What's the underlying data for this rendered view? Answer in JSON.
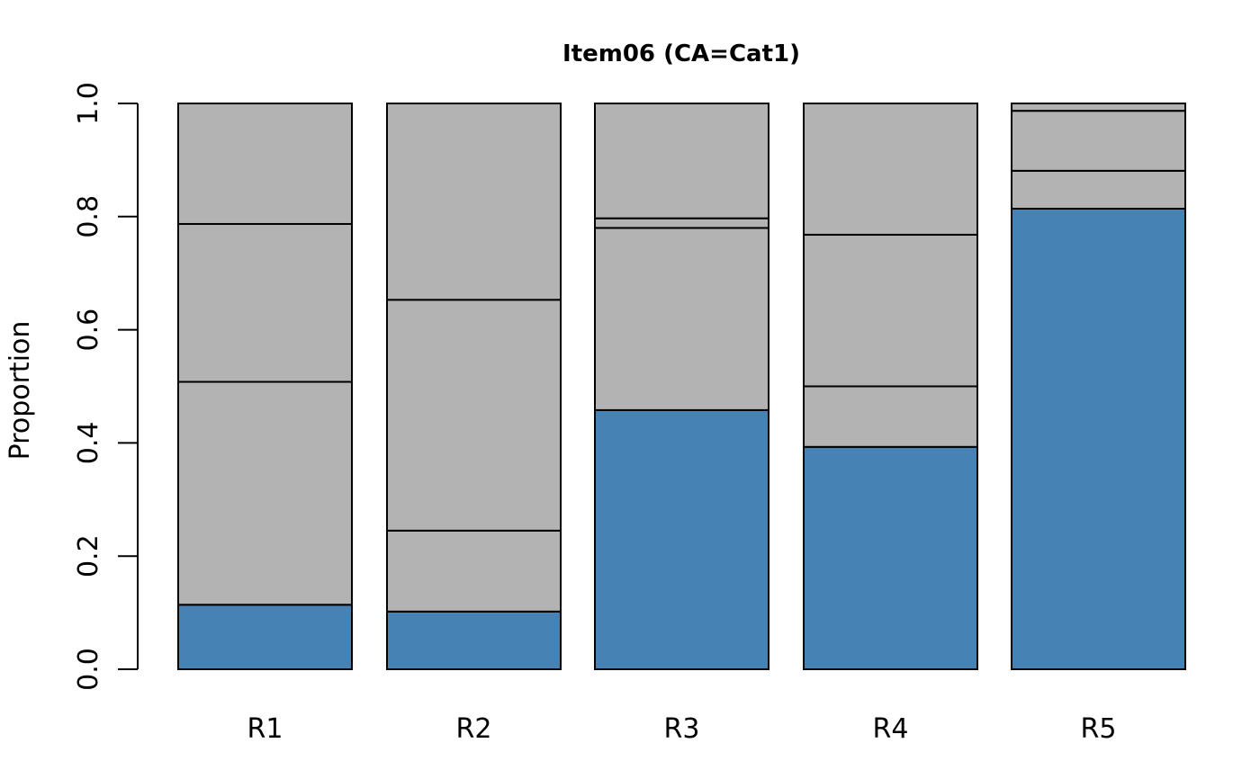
{
  "chart_data": {
    "type": "bar",
    "stacked": true,
    "proportional": true,
    "title": "Item06 (CA=Cat1)",
    "xlabel": "",
    "ylabel": "Proportion",
    "ylim": [
      0,
      1
    ],
    "yticks": [
      "0.0",
      "0.2",
      "0.4",
      "0.6",
      "0.8",
      "1.0"
    ],
    "grid": false,
    "legend": "none",
    "categories": [
      "R1",
      "R2",
      "R3",
      "R4",
      "R5"
    ],
    "segment_boundaries": [
      [
        0.114,
        0.508,
        0.787
      ],
      [
        0.102,
        0.245,
        0.653
      ],
      [
        0.458,
        0.78,
        0.797
      ],
      [
        0.393,
        0.5,
        0.768
      ],
      [
        0.814,
        0.881,
        0.987
      ]
    ],
    "colors": {
      "correct": "#4682B4",
      "other": "#B3B3B3",
      "outline": "#000000"
    }
  }
}
